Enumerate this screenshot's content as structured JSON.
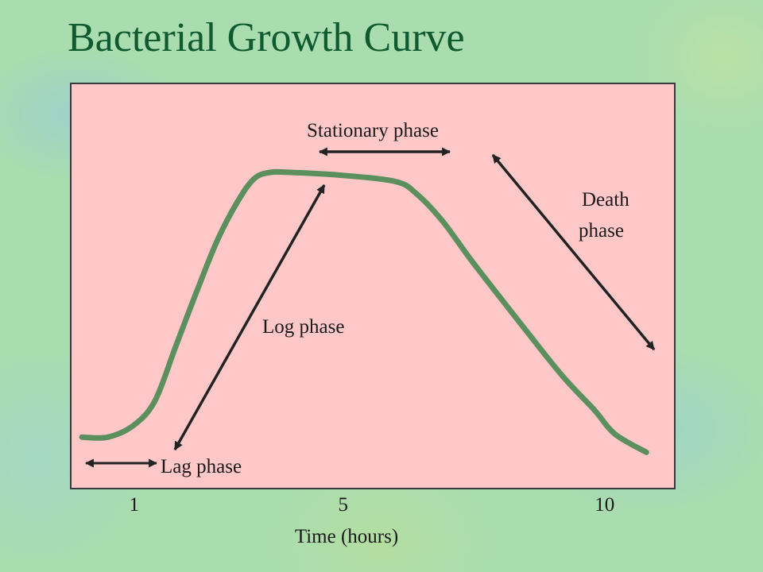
{
  "slide": {
    "title": "Bacterial Growth Curve"
  },
  "colors": {
    "plot_bg": "#ffc8c8",
    "curve": "#5b8f5e",
    "arrow": "#222222",
    "title": "#0f5a2f"
  },
  "chart_data": {
    "type": "line",
    "title": "",
    "xlabel": "Time (hours)",
    "ylabel": "",
    "xlim": [
      0,
      11.1
    ],
    "ylim": [
      0,
      1
    ],
    "grid": false,
    "x_ticks": [
      1,
      5,
      10
    ],
    "series": [
      {
        "x": [
          0,
          0.5,
          1,
          1.4,
          1.8,
          2.2,
          2.6,
          3.0,
          3.3,
          3.6,
          4.0,
          5.0,
          6.0,
          6.4,
          6.9,
          7.5,
          8.5,
          9.2,
          9.8,
          10.2,
          10.8
        ],
        "y": [
          0.13,
          0.13,
          0.17,
          0.25,
          0.43,
          0.61,
          0.78,
          0.91,
          0.98,
          1.0,
          1.0,
          0.99,
          0.97,
          0.93,
          0.84,
          0.7,
          0.48,
          0.33,
          0.22,
          0.14,
          0.08
        ]
      }
    ],
    "annotations": [
      {
        "text": "Lag phase",
        "arrow": "double",
        "from_x": 0.1,
        "to_x": 1.3
      },
      {
        "text": "Log phase",
        "arrow": "double",
        "from_x": 1.5,
        "to_x": 3.9
      },
      {
        "text": "Stationary phase",
        "arrow": "double",
        "from_x": 4.1,
        "to_x": 6.0
      },
      {
        "text": "Death phase",
        "lines": [
          "Death",
          "phase"
        ],
        "arrow": "double",
        "from_x": 6.7,
        "to_x": 10.0
      }
    ]
  }
}
